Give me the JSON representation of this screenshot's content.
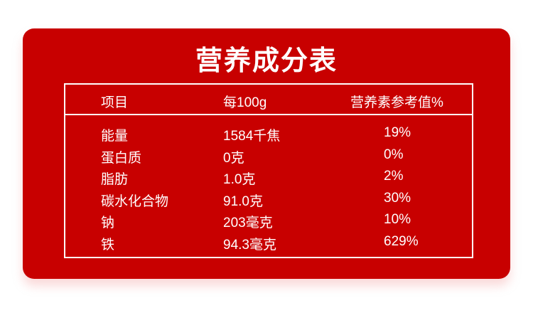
{
  "title": "营养成分表",
  "header": {
    "item": "项目",
    "per100g": "每100g",
    "nrv": "营养素参考值%"
  },
  "rows": [
    {
      "item": "能量",
      "per100g": "1584千焦",
      "nrv": "19%"
    },
    {
      "item": "蛋白质",
      "per100g": "0克",
      "nrv": "0%"
    },
    {
      "item": "脂肪",
      "per100g": "1.0克",
      "nrv": "2%"
    },
    {
      "item": "碳水化合物",
      "per100g": "91.0克",
      "nrv": "30%"
    },
    {
      "item": "钠",
      "per100g": "203毫克",
      "nrv": "10%"
    },
    {
      "item": "铁",
      "per100g": "94.3毫克",
      "nrv": "629%"
    }
  ],
  "colors": {
    "background": "#c80000",
    "text": "#ffffff"
  }
}
